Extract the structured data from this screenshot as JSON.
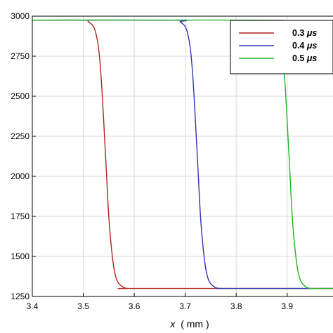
{
  "chart_data": {
    "type": "line",
    "xlabel_var": "x",
    "xlabel_unit": "( mm )",
    "ylabel": "",
    "xlim": [
      3.4,
      3.99
    ],
    "ylim": [
      1250,
      3000
    ],
    "x_ticks": [
      3.4,
      3.5,
      3.6,
      3.7,
      3.8,
      3.9
    ],
    "x_tick_labels": [
      "3.4",
      "3.5",
      "3.6",
      "3.7",
      "3.8",
      "3.9"
    ],
    "y_ticks": [
      1250,
      1500,
      1750,
      2000,
      2250,
      2500,
      2750,
      3000
    ],
    "y_tick_labels": [
      "1250",
      "1500",
      "1750",
      "2000",
      "2250",
      "2500",
      "2750",
      "3000"
    ],
    "grid": true,
    "legend_position": "top-right",
    "series": [
      {
        "name_num": "0.3",
        "name_unit": "μs",
        "color": "#b22222",
        "x": [
          3.4,
          3.5,
          3.51,
          3.52,
          3.525,
          3.53,
          3.535,
          3.54,
          3.545,
          3.55,
          3.555,
          3.56,
          3.565,
          3.57,
          3.58,
          3.59,
          3.6,
          3.99
        ],
        "y": [
          2975,
          2975,
          2965,
          2935,
          2890,
          2800,
          2620,
          2350,
          2050,
          1750,
          1560,
          1430,
          1360,
          1330,
          1305,
          1300,
          1300,
          1300
        ]
      },
      {
        "name_num": "0.4",
        "name_unit": "μs",
        "color": "#2f35b0",
        "x": [
          3.4,
          3.68,
          3.69,
          3.7,
          3.705,
          3.71,
          3.715,
          3.72,
          3.725,
          3.73,
          3.735,
          3.74,
          3.745,
          3.75,
          3.76,
          3.77,
          3.78,
          3.99
        ],
        "y": [
          2975,
          2975,
          2965,
          2935,
          2890,
          2800,
          2620,
          2350,
          2050,
          1750,
          1560,
          1430,
          1360,
          1330,
          1305,
          1300,
          1300,
          1300
        ]
      },
      {
        "name_num": "0.5",
        "name_unit": "μs",
        "color": "#22b422",
        "x": [
          3.4,
          3.86,
          3.87,
          3.88,
          3.885,
          3.89,
          3.895,
          3.9,
          3.905,
          3.91,
          3.915,
          3.92,
          3.925,
          3.93,
          3.94,
          3.95,
          3.96,
          3.99
        ],
        "y": [
          2975,
          2975,
          2965,
          2935,
          2890,
          2800,
          2620,
          2350,
          2050,
          1750,
          1560,
          1430,
          1360,
          1330,
          1305,
          1300,
          1300,
          1300
        ]
      }
    ]
  }
}
